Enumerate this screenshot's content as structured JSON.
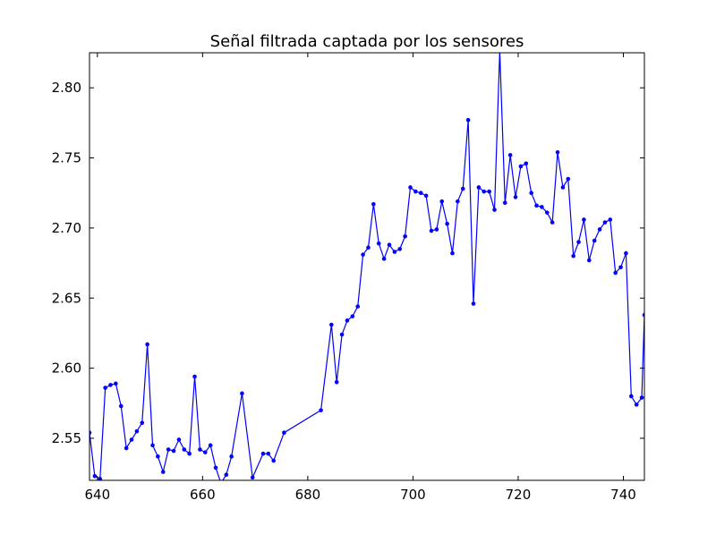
{
  "chart_data": {
    "type": "line",
    "title": "Señal filtrada captada por los sensores",
    "xlabel": "",
    "ylabel": "",
    "xlim": [
      638.5,
      744
    ],
    "ylim": [
      2.52,
      2.825
    ],
    "grid": false,
    "x_ticks": [
      640,
      660,
      680,
      700,
      720,
      740
    ],
    "y_ticks": [
      2.55,
      2.6,
      2.65,
      2.7,
      2.75,
      2.8
    ],
    "x_tick_labels": [
      "640",
      "660",
      "680",
      "700",
      "720",
      "740"
    ],
    "y_tick_labels": [
      "2.55",
      "2.60",
      "2.65",
      "2.70",
      "2.75",
      "2.80"
    ],
    "series": [
      {
        "color": "#0000ff",
        "x": [
          638.5,
          639.5,
          640.5,
          641.5,
          642.5,
          643.5,
          644.5,
          645.5,
          646.5,
          647.5,
          648.5,
          649.5,
          650.5,
          651.5,
          652.5,
          653.5,
          654.5,
          655.5,
          656.5,
          657.5,
          658.5,
          659.5,
          660.5,
          661.5,
          662.5,
          663.5,
          664.5,
          665.5,
          667.5,
          669.5,
          671.5,
          672.5,
          673.5,
          675.5,
          682.5,
          684.5,
          685.5,
          686.5,
          687.5,
          688.5,
          689.5,
          690.5,
          691.5,
          692.5,
          693.5,
          694.5,
          695.5,
          696.5,
          697.5,
          698.5,
          699.5,
          700.5,
          701.5,
          702.5,
          703.5,
          704.5,
          705.5,
          706.5,
          707.5,
          708.5,
          709.5,
          710.5,
          711.5,
          712.5,
          713.5,
          714.5,
          715.5,
          716.5,
          717.5,
          718.5,
          719.5,
          720.5,
          721.5,
          722.5,
          723.5,
          724.5,
          725.5,
          726.5,
          727.5,
          728.5,
          729.5,
          730.5,
          731.5,
          732.5,
          733.5,
          734.5,
          735.5,
          736.5,
          737.5,
          738.5,
          739.5,
          740.5,
          741.5,
          742.5,
          743.5,
          744.0
        ],
        "y": [
          2.554,
          2.523,
          2.521,
          2.586,
          2.588,
          2.589,
          2.573,
          2.543,
          2.549,
          2.555,
          2.561,
          2.617,
          2.545,
          2.537,
          2.526,
          2.542,
          2.541,
          2.549,
          2.542,
          2.539,
          2.594,
          2.542,
          2.54,
          2.545,
          2.529,
          2.518,
          2.524,
          2.537,
          2.582,
          2.522,
          2.539,
          2.539,
          2.534,
          2.554,
          2.57,
          2.631,
          2.59,
          2.624,
          2.634,
          2.637,
          2.644,
          2.681,
          2.686,
          2.717,
          2.689,
          2.678,
          2.688,
          2.683,
          2.685,
          2.694,
          2.729,
          2.726,
          2.725,
          2.723,
          2.698,
          2.699,
          2.719,
          2.703,
          2.682,
          2.719,
          2.728,
          2.777,
          2.646,
          2.729,
          2.726,
          2.726,
          2.713,
          2.826,
          2.718,
          2.752,
          2.722,
          2.744,
          2.746,
          2.725,
          2.716,
          2.715,
          2.711,
          2.704,
          2.754,
          2.729,
          2.735,
          2.68,
          2.69,
          2.706,
          2.677,
          2.691,
          2.699,
          2.704,
          2.706,
          2.668,
          2.672,
          2.682,
          2.58,
          2.574,
          2.579,
          2.638
        ]
      }
    ]
  }
}
